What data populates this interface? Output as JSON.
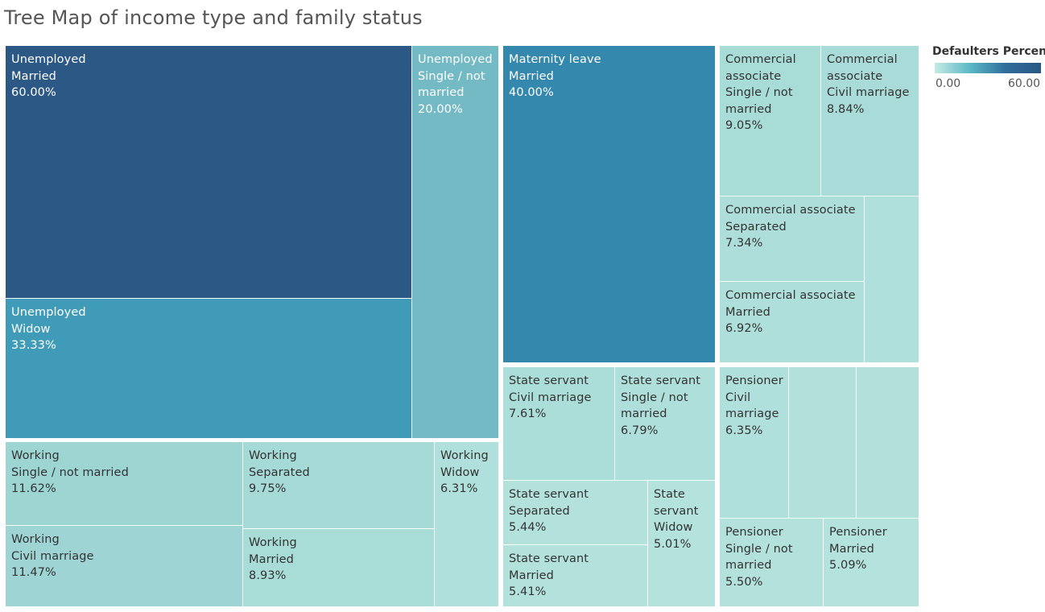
{
  "chart_data": {
    "type": "treemap",
    "title": "Tree Map of income type and family status",
    "measure": "Defaulters Percen..",
    "color_scale": {
      "min": 0.0,
      "max": 60.0,
      "min_label": "0.00",
      "max_label": "60.00",
      "low_color": "#c4eae3",
      "high_color": "#2a5783"
    },
    "groups": [
      {
        "name": "Unemployed",
        "cells": [
          {
            "lines": [
              "Unemployed",
              "Married",
              "60.00%"
            ],
            "value": 60.0
          },
          {
            "lines": [
              "Unemployed",
              "Widow",
              "33.33%"
            ],
            "value": 33.33
          },
          {
            "lines": [
              "Unemployed",
              "Single / not",
              "married",
              "20.00%"
            ],
            "value": 20.0
          }
        ]
      },
      {
        "name": "Working",
        "cells": [
          {
            "lines": [
              "Working",
              "Single / not married",
              "11.62%"
            ],
            "value": 11.62
          },
          {
            "lines": [
              "Working",
              "Civil marriage",
              "11.47%"
            ],
            "value": 11.47
          },
          {
            "lines": [
              "Working",
              "Separated",
              "9.75%"
            ],
            "value": 9.75
          },
          {
            "lines": [
              "Working",
              "Married",
              "8.93%"
            ],
            "value": 8.93
          },
          {
            "lines": [
              "Working",
              "Widow",
              "6.31%"
            ],
            "value": 6.31
          }
        ]
      },
      {
        "name": "Maternity leave",
        "cells": [
          {
            "lines": [
              "Maternity leave",
              "Married",
              "40.00%"
            ],
            "value": 40.0
          }
        ]
      },
      {
        "name": "State servant",
        "cells": [
          {
            "lines": [
              "State servant",
              "Civil marriage",
              "7.61%"
            ],
            "value": 7.61
          },
          {
            "lines": [
              "State servant",
              "Single / not",
              "married",
              "6.79%"
            ],
            "value": 6.79
          },
          {
            "lines": [
              "State servant",
              "Separated",
              "5.44%"
            ],
            "value": 5.44
          },
          {
            "lines": [
              "State servant",
              "Married",
              "5.41%"
            ],
            "value": 5.41
          },
          {
            "lines": [
              "State",
              "servant",
              "Widow",
              "5.01%"
            ],
            "value": 5.01
          }
        ]
      },
      {
        "name": "Commercial associate",
        "cells": [
          {
            "lines": [
              "Commercial",
              "associate",
              "Single / not",
              "married",
              "9.05%"
            ],
            "value": 9.05
          },
          {
            "lines": [
              "Commercial",
              "associate",
              "Civil marriage",
              "8.84%"
            ],
            "value": 8.84
          },
          {
            "lines": [
              "Commercial associate",
              "Separated",
              "7.34%"
            ],
            "value": 7.34
          },
          {
            "lines": [
              "Commercial associate",
              "Married",
              "6.92%"
            ],
            "value": 6.92
          },
          {
            "lines": [],
            "value": 6.3
          }
        ]
      },
      {
        "name": "Pensioner",
        "cells": [
          {
            "lines": [
              "Pensioner",
              "Civil",
              "marriage",
              "6.35%"
            ],
            "value": 6.35
          },
          {
            "lines": [],
            "value": 5.9
          },
          {
            "lines": [],
            "value": 5.8
          },
          {
            "lines": [
              "Pensioner",
              "Single / not",
              "married",
              "5.50%"
            ],
            "value": 5.5
          },
          {
            "lines": [
              "Pensioner",
              "Married",
              "5.09%"
            ],
            "value": 5.09
          }
        ]
      }
    ]
  }
}
